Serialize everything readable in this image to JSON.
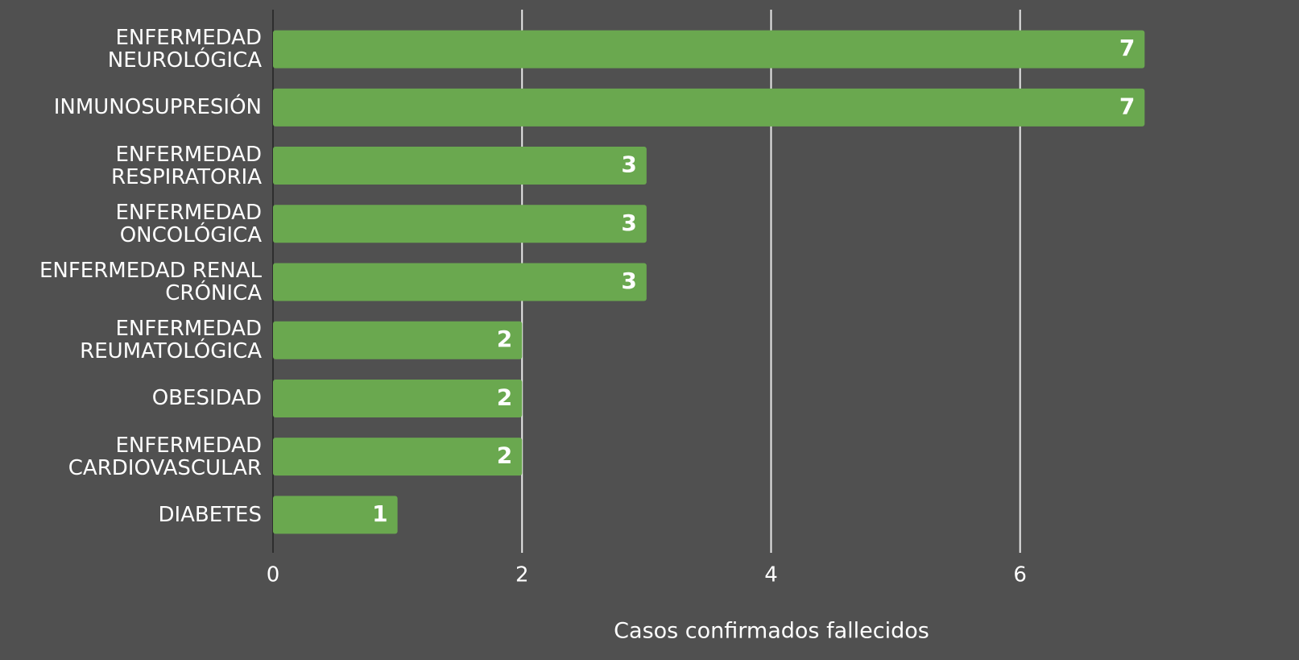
{
  "chart_data": {
    "type": "bar",
    "orientation": "horizontal",
    "x_label": "Casos confirmados fallecidos",
    "categories": [
      "ENFERMEDAD NEUROLÓGICA",
      "INMUNOSUPRESIÓN",
      "ENFERMEDAD RESPIRATORIA",
      "ENFERMEDAD ONCOLÓGICA",
      "ENFERMEDAD RENAL CRÓNICA",
      "ENFERMEDAD REUMATOLÓGICA",
      "OBESIDAD",
      "ENFERMEDAD CARDIOVASCULAR",
      "DIABETES"
    ],
    "values": [
      7,
      7,
      3,
      3,
      3,
      2,
      2,
      2,
      1
    ],
    "color": "#6aa84f",
    "xlim": [
      0,
      7.8
    ],
    "xticks": [
      0,
      2,
      4,
      6
    ],
    "grid": true
  }
}
